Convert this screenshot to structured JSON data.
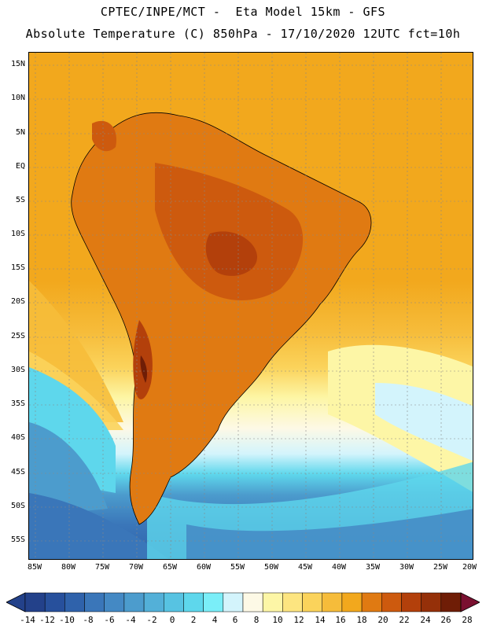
{
  "header": {
    "line1": "CPTEC/INPE/MCT -  Eta Model 15km - GFS",
    "line2": "Absolute Temperature (C) 850hPa - 17/10/2020 12UTC fct=10h"
  },
  "map": {
    "lat_labels": [
      "15N",
      "10N",
      "5N",
      "EQ",
      "5S",
      "10S",
      "15S",
      "20S",
      "25S",
      "30S",
      "35S",
      "40S",
      "45S",
      "50S",
      "55S"
    ],
    "lon_labels": [
      "85W",
      "80W",
      "75W",
      "70W",
      "65W",
      "60W",
      "55W",
      "50W",
      "45W",
      "40W",
      "35W",
      "30W",
      "25W",
      "20W"
    ]
  },
  "colorbar": {
    "labels": [
      "-14",
      "-12",
      "-10",
      "-8",
      "-6",
      "-4",
      "-2",
      "0",
      "2",
      "4",
      "6",
      "8",
      "10",
      "12",
      "14",
      "16",
      "18",
      "20",
      "22",
      "24",
      "26",
      "28"
    ],
    "colors": [
      "#23418a",
      "#27509c",
      "#2f62ab",
      "#3a76b9",
      "#4489c4",
      "#4c9ccd",
      "#53b0d8",
      "#57c3e2",
      "#5ed7ec",
      "#7aeef8",
      "#d3f4fc",
      "#fdf9e6",
      "#fdf6a6",
      "#fde580",
      "#fbd35b",
      "#f6bc3a",
      "#f2a81d",
      "#e07a12",
      "#cd5a0e",
      "#b3400b",
      "#953009",
      "#6f1d06"
    ]
  }
}
